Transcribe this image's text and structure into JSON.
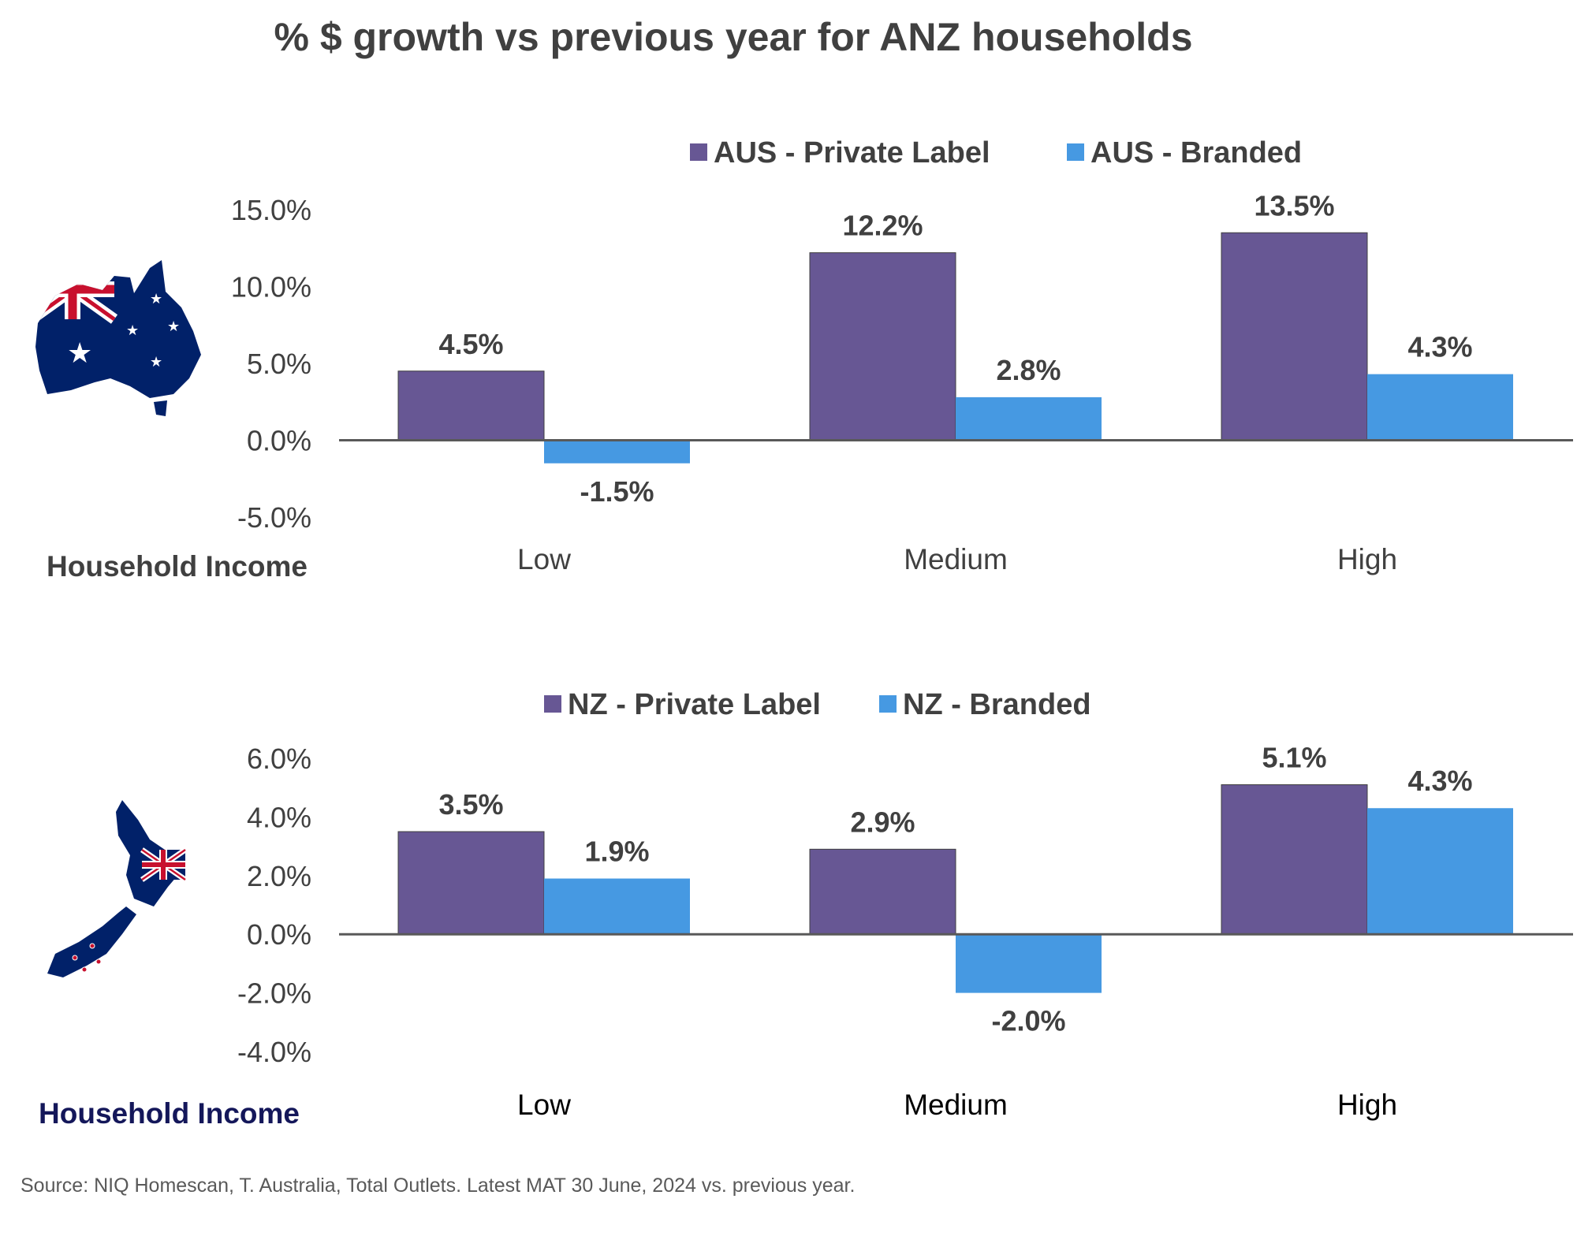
{
  "title": "% $ growth vs previous year for ANZ households",
  "source": "Source: NIQ Homescan, T. Australia, Total Outlets. Latest MAT 30 June, 2024 vs. previous year.",
  "colors": {
    "private_label": "#675794",
    "branded": "#4699e2",
    "axis": "#595959",
    "text": "#404040",
    "nz_label": "#14175a"
  },
  "icons": {
    "aus": "australia-flag-map-icon",
    "nz": "new-zealand-flag-map-icon"
  },
  "chart_data": [
    {
      "id": "aus",
      "type": "bar",
      "category_axis_label": "Household Income",
      "categories": [
        "Low",
        "Medium",
        "High"
      ],
      "series": [
        {
          "name": "AUS - Private Label",
          "values": [
            4.5,
            12.2,
            13.5
          ],
          "color": "#675794"
        },
        {
          "name": "AUS - Branded",
          "values": [
            -1.5,
            2.8,
            4.3
          ],
          "color": "#4699e2"
        }
      ],
      "ylim": [
        -5,
        15
      ],
      "yticks": [
        -5,
        0,
        5,
        10,
        15
      ],
      "ytick_labels": [
        "-5.0%",
        "0.0%",
        "5.0%",
        "10.0%",
        "15.0%"
      ],
      "data_labels": [
        [
          "4.5%",
          "12.2%",
          "13.5%"
        ],
        [
          "-1.5%",
          "2.8%",
          "4.3%"
        ]
      ],
      "legend": "top",
      "grid": false
    },
    {
      "id": "nz",
      "type": "bar",
      "category_axis_label": "Household Income",
      "categories": [
        "Low",
        "Medium",
        "High"
      ],
      "series": [
        {
          "name": "NZ - Private Label",
          "values": [
            3.5,
            2.9,
            5.1
          ],
          "color": "#675794"
        },
        {
          "name": "NZ - Branded",
          "values": [
            1.9,
            -2.0,
            4.3
          ],
          "color": "#4699e2"
        }
      ],
      "ylim": [
        -4,
        6
      ],
      "yticks": [
        -4,
        -2,
        0,
        2,
        4,
        6
      ],
      "ytick_labels": [
        "-4.0%",
        "-2.0%",
        "0.0%",
        "2.0%",
        "4.0%",
        "6.0%"
      ],
      "data_labels": [
        [
          "3.5%",
          "2.9%",
          "5.1%"
        ],
        [
          "1.9%",
          "-2.0%",
          "4.3%"
        ]
      ],
      "legend": "top",
      "grid": false
    }
  ]
}
